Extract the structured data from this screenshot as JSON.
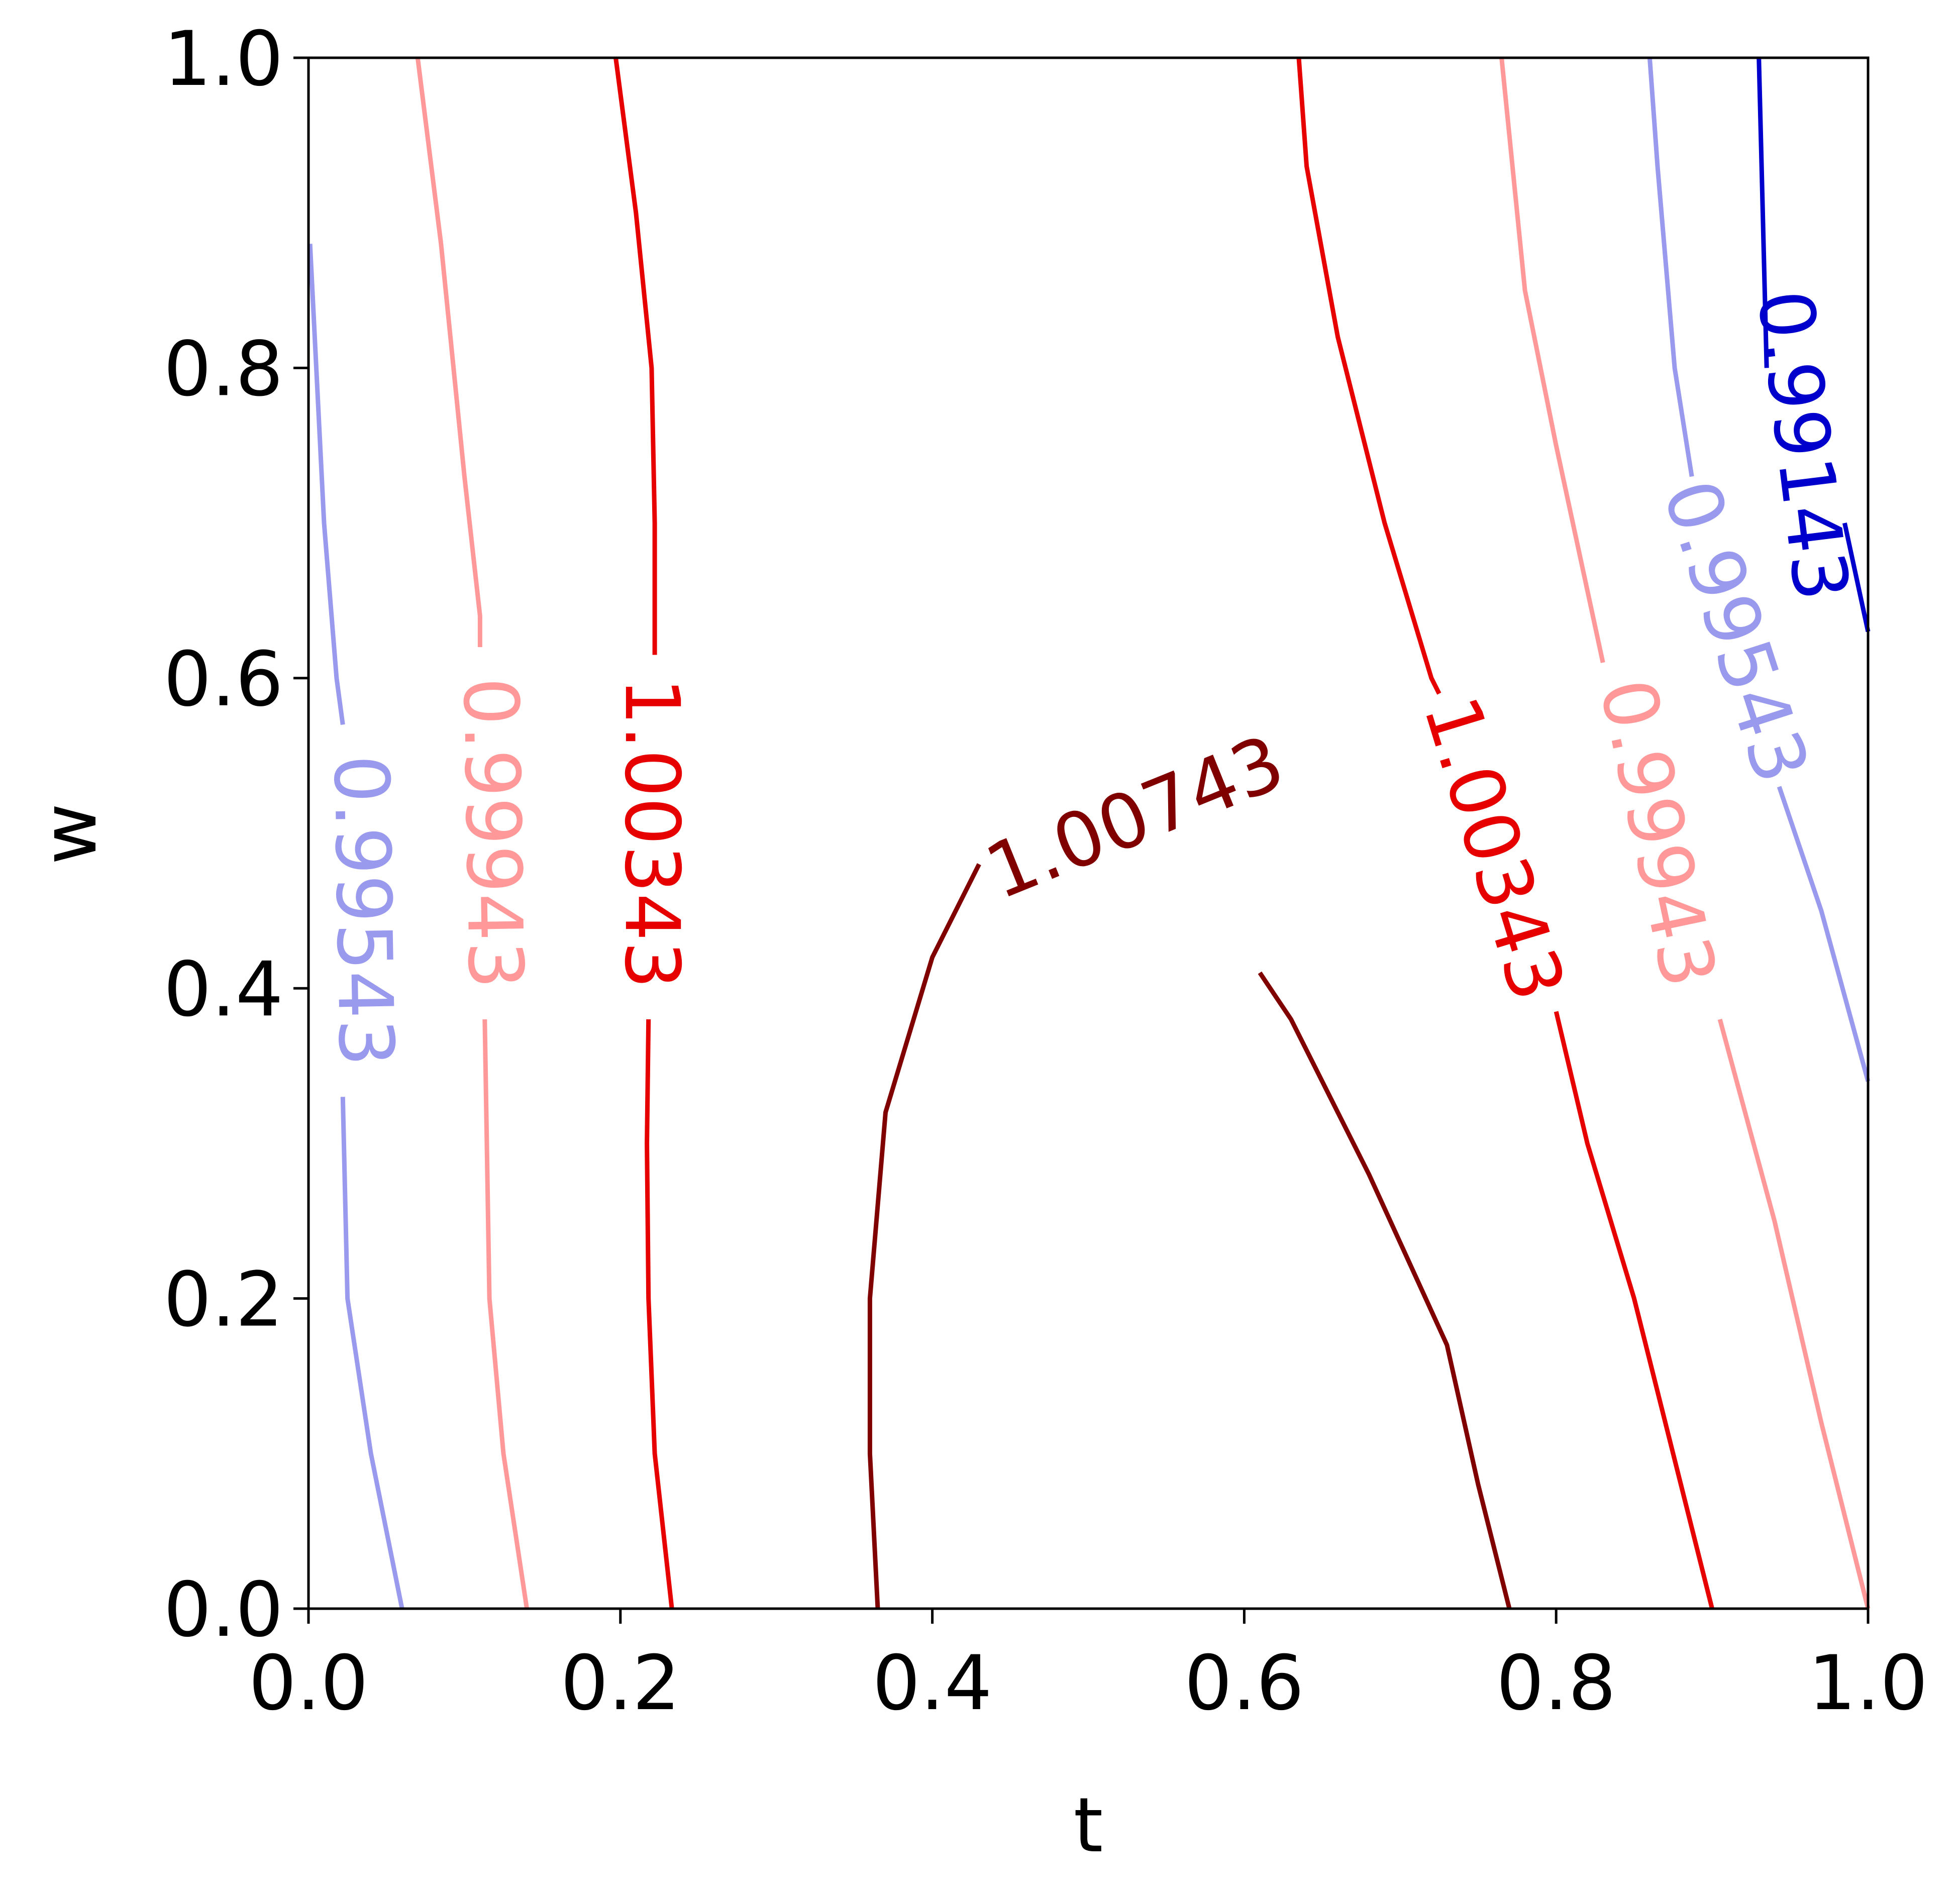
{
  "chart_data": {
    "type": "contour",
    "xlabel": "t",
    "ylabel": "w",
    "xlim": [
      0.0,
      1.0
    ],
    "ylim": [
      0.0,
      1.0
    ],
    "xticks": [
      "0.0",
      "0.2",
      "0.4",
      "0.6",
      "0.8",
      "1.0"
    ],
    "yticks": [
      "0.0",
      "0.2",
      "0.4",
      "0.6",
      "0.8",
      "1.0"
    ],
    "grid": false,
    "legend": "none",
    "levels": [
      {
        "label": "0.99143",
        "color": "#0000cc",
        "segments": [
          [
            [
              0.93,
              1.0
            ],
            [
              0.935,
              0.8
            ]
          ],
          [
            [
              0.985,
              0.7
            ],
            [
              1.0,
              0.63
            ]
          ]
        ],
        "labels": [
          {
            "t": 0.958,
            "w": 0.75,
            "angle_deg": 83
          }
        ]
      },
      {
        "label": "0.99543",
        "color": "#9999ee",
        "segments": [
          [
            [
              0.001,
              0.88
            ],
            [
              0.005,
              0.8
            ],
            [
              0.01,
              0.7
            ],
            [
              0.018,
              0.6
            ],
            [
              0.022,
              0.57
            ]
          ],
          [
            [
              0.022,
              0.33
            ],
            [
              0.025,
              0.2
            ],
            [
              0.04,
              0.1
            ],
            [
              0.06,
              0.0
            ]
          ],
          [
            [
              0.86,
              1.0
            ],
            [
              0.865,
              0.93
            ],
            [
              0.876,
              0.8
            ],
            [
              0.887,
              0.73
            ]
          ],
          [
            [
              0.943,
              0.53
            ],
            [
              0.97,
              0.45
            ],
            [
              1.0,
              0.34
            ]
          ]
        ],
        "labels": [
          {
            "t": 0.035,
            "w": 0.45,
            "angle_deg": 89
          },
          {
            "t": 0.915,
            "w": 0.63,
            "angle_deg": 72
          }
        ]
      },
      {
        "label": "0.99943",
        "color": "#ff9999",
        "segments": [
          [
            [
              0.07,
              1.0
            ],
            [
              0.085,
              0.88
            ],
            [
              0.1,
              0.73
            ],
            [
              0.11,
              0.64
            ],
            [
              0.11,
              0.62
            ]
          ],
          [
            [
              0.113,
              0.38
            ],
            [
              0.116,
              0.2
            ],
            [
              0.125,
              0.1
            ],
            [
              0.14,
              0.0
            ]
          ],
          [
            [
              0.765,
              1.0
            ],
            [
              0.78,
              0.85
            ],
            [
              0.8,
              0.75
            ],
            [
              0.83,
              0.61
            ]
          ],
          [
            [
              0.905,
              0.38
            ],
            [
              0.94,
              0.25
            ],
            [
              0.97,
              0.12
            ],
            [
              1.0,
              0.0
            ]
          ]
        ],
        "labels": [
          {
            "t": 0.118,
            "w": 0.5,
            "angle_deg": 89
          },
          {
            "t": 0.865,
            "w": 0.5,
            "angle_deg": 78
          }
        ]
      },
      {
        "label": "1.00343",
        "color": "#e60000",
        "segments": [
          [
            [
              0.197,
              1.0
            ],
            [
              0.21,
              0.9
            ],
            [
              0.22,
              0.8
            ],
            [
              0.222,
              0.7
            ],
            [
              0.222,
              0.64
            ],
            [
              0.222,
              0.615
            ]
          ],
          [
            [
              0.218,
              0.38
            ],
            [
              0.217,
              0.3
            ],
            [
              0.218,
              0.2
            ],
            [
              0.222,
              0.1
            ],
            [
              0.233,
              0.0
            ]
          ],
          [
            [
              0.635,
              1.0
            ],
            [
              0.64,
              0.93
            ],
            [
              0.66,
              0.82
            ],
            [
              0.69,
              0.7
            ],
            [
              0.72,
              0.6
            ],
            [
              0.725,
              0.59
            ]
          ],
          [
            [
              0.8,
              0.385
            ],
            [
              0.82,
              0.3
            ],
            [
              0.85,
              0.2
            ],
            [
              0.875,
              0.1
            ],
            [
              0.9,
              0.0
            ]
          ]
        ],
        "labels": [
          {
            "t": 0.22,
            "w": 0.5,
            "angle_deg": 90
          },
          {
            "t": 0.76,
            "w": 0.49,
            "angle_deg": 73
          }
        ]
      },
      {
        "label": "1.00743",
        "color": "#800000",
        "segments": [
          [
            [
              0.365,
              0.0
            ],
            [
              0.36,
              0.1
            ],
            [
              0.36,
              0.2
            ],
            [
              0.37,
              0.32
            ],
            [
              0.4,
              0.42
            ],
            [
              0.43,
              0.48
            ]
          ],
          [
            [
              0.61,
              0.41
            ],
            [
              0.63,
              0.38
            ],
            [
              0.655,
              0.33
            ],
            [
              0.68,
              0.28
            ],
            [
              0.73,
              0.17
            ],
            [
              0.75,
              0.08
            ],
            [
              0.77,
              0.0
            ]
          ]
        ],
        "labels": [
          {
            "t": 0.53,
            "w": 0.51,
            "angle_deg": -22
          }
        ]
      }
    ]
  }
}
